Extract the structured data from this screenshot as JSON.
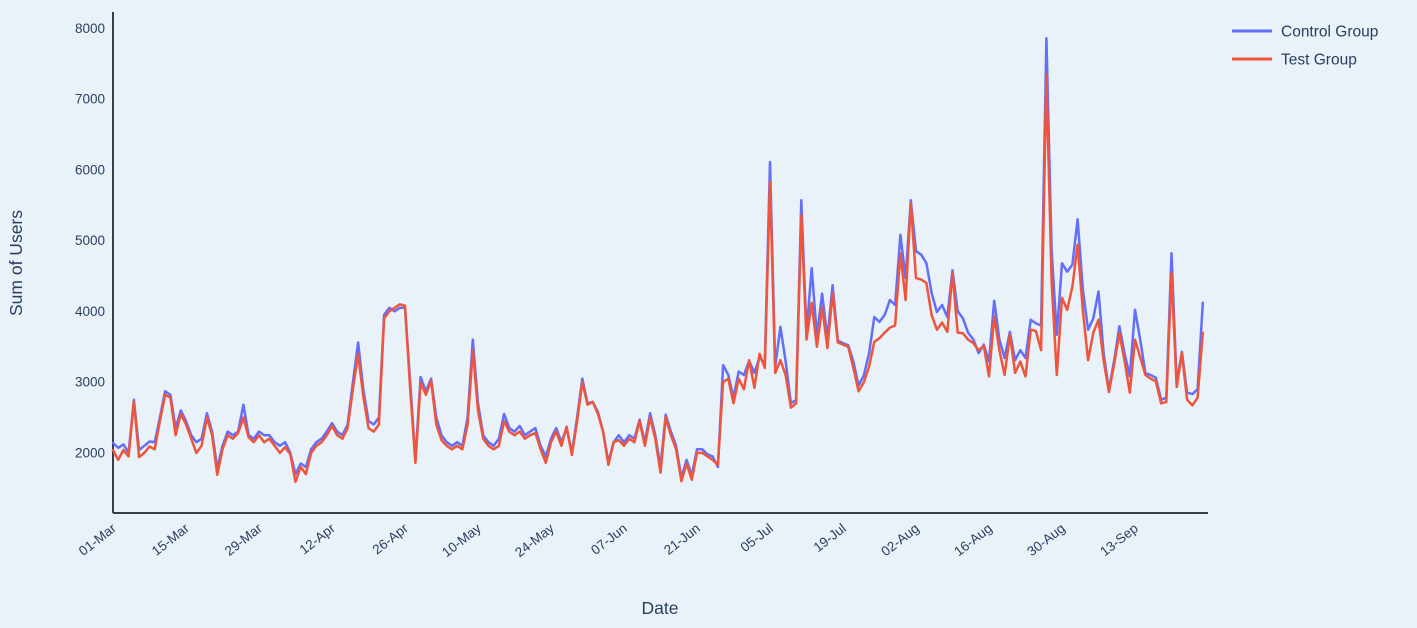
{
  "colors": {
    "background": "#E9F1F9",
    "text": "#2a3f5f",
    "axis_line": "#383c44",
    "control_group": "#636EFA",
    "test_group": "#EF553B"
  },
  "chart_data": {
    "type": "line",
    "title": "",
    "xlabel": "Date",
    "ylabel": "Sum of Users",
    "grid": false,
    "legend_position": "top-right",
    "x_unit": "daily points, day index 0 = 01-Mar",
    "x_max_days": 210,
    "ylim": [
      1150,
      8230
    ],
    "y_ticks": [
      2000,
      3000,
      4000,
      5000,
      6000,
      7000,
      8000
    ],
    "x_ticks": [
      {
        "day": 0,
        "label": "01-Mar"
      },
      {
        "day": 14,
        "label": "15-Mar"
      },
      {
        "day": 28,
        "label": "29-Mar"
      },
      {
        "day": 42,
        "label": "12-Apr"
      },
      {
        "day": 56,
        "label": "26-Apr"
      },
      {
        "day": 70,
        "label": "10-May"
      },
      {
        "day": 84,
        "label": "24-May"
      },
      {
        "day": 98,
        "label": "07-Jun"
      },
      {
        "day": 112,
        "label": "21-Jun"
      },
      {
        "day": 126,
        "label": "05-Jul"
      },
      {
        "day": 140,
        "label": "19-Jul"
      },
      {
        "day": 154,
        "label": "02-Aug"
      },
      {
        "day": 168,
        "label": "16-Aug"
      },
      {
        "day": 182,
        "label": "30-Aug"
      },
      {
        "day": 196,
        "label": "13-Sep"
      }
    ],
    "series": [
      {
        "name": "Control Group",
        "color": "#636EFA",
        "values": [
          2140,
          2070,
          2120,
          2000,
          2750,
          2040,
          2100,
          2160,
          2150,
          2500,
          2870,
          2820,
          2350,
          2600,
          2450,
          2250,
          2150,
          2200,
          2560,
          2300,
          1780,
          2100,
          2300,
          2250,
          2300,
          2680,
          2250,
          2200,
          2300,
          2250,
          2250,
          2150,
          2100,
          2150,
          2000,
          1700,
          1850,
          1800,
          2050,
          2150,
          2200,
          2300,
          2420,
          2300,
          2250,
          2400,
          3000,
          3560,
          2900,
          2450,
          2400,
          2500,
          3950,
          4050,
          4000,
          4050,
          4050,
          3000,
          1900,
          3070,
          2870,
          3050,
          2500,
          2250,
          2150,
          2100,
          2150,
          2100,
          2500,
          3600,
          2700,
          2250,
          2150,
          2100,
          2200,
          2550,
          2350,
          2300,
          2380,
          2250,
          2300,
          2350,
          2100,
          1950,
          2200,
          2350,
          2150,
          2350,
          2000,
          2500,
          3050,
          2700,
          2720,
          2580,
          2300,
          1870,
          2150,
          2250,
          2150,
          2250,
          2200,
          2470,
          2150,
          2560,
          2250,
          1800,
          2540,
          2300,
          2100,
          1650,
          1900,
          1680,
          2050,
          2050,
          1980,
          1950,
          1800,
          3240,
          3100,
          2780,
          3150,
          3100,
          3300,
          3130,
          3350,
          3250,
          6110,
          3220,
          3780,
          3300,
          2700,
          2750,
          5570,
          3700,
          4610,
          3650,
          4250,
          3620,
          4370,
          3590,
          3550,
          3520,
          3290,
          2950,
          3100,
          3410,
          3920,
          3850,
          3950,
          4160,
          4090,
          5080,
          4470,
          5570,
          4850,
          4800,
          4680,
          4260,
          3990,
          4090,
          3920,
          4580,
          4000,
          3900,
          3700,
          3600,
          3410,
          3530,
          3290,
          4150,
          3600,
          3340,
          3710,
          3310,
          3450,
          3340,
          3880,
          3830,
          3800,
          7860,
          4870,
          3670,
          4680,
          4560,
          4660,
          5300,
          4300,
          3740,
          3900,
          4280,
          3400,
          2890,
          3300,
          3790,
          3400,
          3080,
          4020,
          3600,
          3130,
          3100,
          3060,
          2750,
          2780,
          4820,
          2980,
          3430,
          2850,
          2830,
          2900,
          4120
        ]
      },
      {
        "name": "Test Group",
        "color": "#EF553B",
        "values": [
          2040,
          1900,
          2040,
          1950,
          2720,
          1940,
          2000,
          2090,
          2050,
          2450,
          2820,
          2780,
          2250,
          2550,
          2400,
          2200,
          2000,
          2100,
          2500,
          2250,
          1690,
          2050,
          2250,
          2200,
          2280,
          2500,
          2220,
          2150,
          2250,
          2150,
          2200,
          2100,
          2000,
          2080,
          1980,
          1590,
          1800,
          1700,
          2000,
          2100,
          2150,
          2250,
          2380,
          2250,
          2200,
          2350,
          2900,
          3400,
          2800,
          2350,
          2300,
          2400,
          3900,
          4000,
          4050,
          4100,
          4080,
          2900,
          1860,
          2990,
          2820,
          3020,
          2400,
          2180,
          2100,
          2050,
          2100,
          2050,
          2400,
          3450,
          2600,
          2200,
          2100,
          2050,
          2100,
          2450,
          2300,
          2250,
          2300,
          2200,
          2250,
          2280,
          2050,
          1860,
          2150,
          2300,
          2100,
          2370,
          1970,
          2450,
          3000,
          2680,
          2720,
          2550,
          2300,
          1830,
          2150,
          2180,
          2100,
          2200,
          2150,
          2450,
          2100,
          2500,
          2200,
          1720,
          2500,
          2250,
          2050,
          1600,
          1850,
          1620,
          2000,
          2000,
          1950,
          1900,
          1830,
          3000,
          3050,
          2700,
          3050,
          2900,
          3310,
          2920,
          3400,
          3200,
          5830,
          3130,
          3310,
          3100,
          2640,
          2700,
          5360,
          3600,
          4120,
          3500,
          4060,
          3480,
          4260,
          3560,
          3530,
          3500,
          3200,
          2870,
          3000,
          3220,
          3570,
          3620,
          3700,
          3770,
          3800,
          4820,
          4160,
          5530,
          4470,
          4450,
          4400,
          3950,
          3740,
          3840,
          3710,
          4540,
          3700,
          3690,
          3600,
          3550,
          3450,
          3510,
          3080,
          3930,
          3450,
          3100,
          3670,
          3130,
          3290,
          3080,
          3740,
          3720,
          3450,
          7340,
          4420,
          3100,
          4190,
          4020,
          4350,
          4940,
          4000,
          3310,
          3700,
          3880,
          3300,
          2860,
          3250,
          3690,
          3300,
          2850,
          3600,
          3350,
          3100,
          3050,
          3010,
          2700,
          2720,
          4540,
          2930,
          3410,
          2750,
          2670,
          2780,
          3700
        ]
      }
    ]
  }
}
